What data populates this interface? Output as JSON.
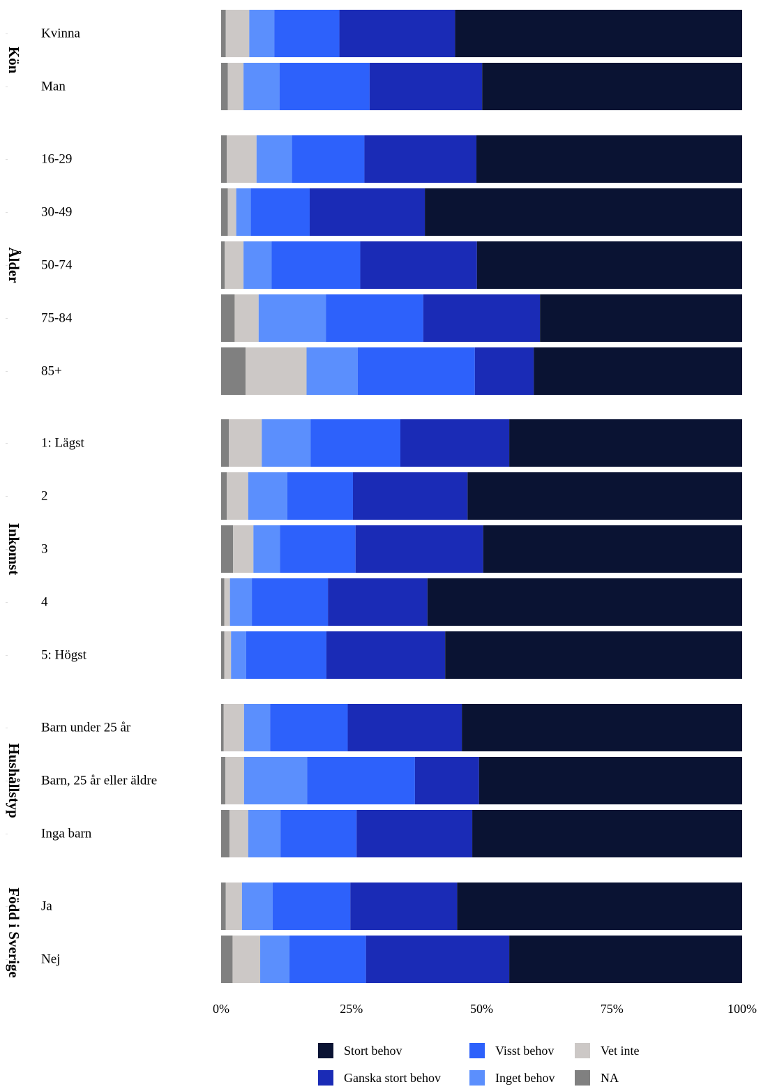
{
  "chart_data": {
    "type": "bar",
    "orientation": "horizontal",
    "stacked": "percent",
    "title": "",
    "xlabel": "",
    "ylabel": "",
    "xlim": [
      0,
      100
    ],
    "x_ticks": [
      "0%",
      "25%",
      "50%",
      "75%",
      "100%"
    ],
    "x_tick_values": [
      0,
      25,
      50,
      75,
      100
    ],
    "grid": false,
    "legend_position": "bottom",
    "groups": [
      {
        "label": "Kön",
        "categories": [
          "Kvinna",
          "Man"
        ]
      },
      {
        "label": "Ålder",
        "categories": [
          "16-29",
          "30-49",
          "50-74",
          "75-84",
          "85+"
        ]
      },
      {
        "label": "Inkomst",
        "categories": [
          "1: Lägst",
          "2",
          "3",
          "4",
          "5: Högst"
        ]
      },
      {
        "label": "Hushållstyp",
        "categories": [
          "Barn under 25 år",
          "Barn, 25 år eller äldre",
          "Inga barn"
        ]
      },
      {
        "label": "Född i Sverige",
        "categories": [
          "Ja",
          "Nej"
        ]
      }
    ],
    "series": [
      {
        "name": "NA",
        "color": "#808080",
        "values": [
          0.9,
          1.3,
          1.1,
          1.3,
          0.7,
          2.6,
          4.7,
          1.5,
          1.1,
          2.3,
          0.6,
          0.6,
          0.5,
          0.8,
          1.6,
          0.9,
          2.2
        ]
      },
      {
        "name": "Vet inte",
        "color": "#ccc8c6",
        "values": [
          4.5,
          3.0,
          5.7,
          1.6,
          3.6,
          4.6,
          11.7,
          6.3,
          4.1,
          3.9,
          1.1,
          1.3,
          3.9,
          3.6,
          3.6,
          3.1,
          5.3
        ]
      },
      {
        "name": "Inget behov",
        "color": "#5b8ffd",
        "values": [
          4.8,
          6.9,
          6.8,
          2.8,
          5.4,
          12.9,
          9.8,
          9.4,
          7.5,
          5.1,
          4.2,
          2.9,
          5.0,
          12.1,
          6.2,
          5.9,
          5.6
        ]
      },
      {
        "name": "Visst behov",
        "color": "#2d61fb",
        "values": [
          12.5,
          17.3,
          13.9,
          11.3,
          17.0,
          18.7,
          22.5,
          17.2,
          12.6,
          14.5,
          14.6,
          15.4,
          14.9,
          20.7,
          14.6,
          14.9,
          14.7
        ]
      },
      {
        "name": "Ganska stort behov",
        "color": "#1a2bb6",
        "values": [
          22.2,
          21.6,
          21.5,
          22.1,
          22.4,
          22.4,
          11.3,
          20.9,
          22.0,
          24.5,
          19.1,
          22.8,
          21.9,
          12.3,
          22.2,
          20.5,
          27.5
        ]
      },
      {
        "name": "Stort behov",
        "color": "#0a1333",
        "values": [
          55.1,
          49.9,
          51.0,
          60.9,
          50.9,
          38.8,
          40.0,
          44.7,
          52.7,
          49.7,
          60.4,
          57.0,
          53.8,
          50.5,
          51.8,
          54.7,
          44.7
        ]
      }
    ],
    "legend_order": [
      "Stort behov",
      "Visst behov",
      "Vet inte",
      "Ganska stort behov",
      "Inget behov",
      "NA"
    ]
  }
}
